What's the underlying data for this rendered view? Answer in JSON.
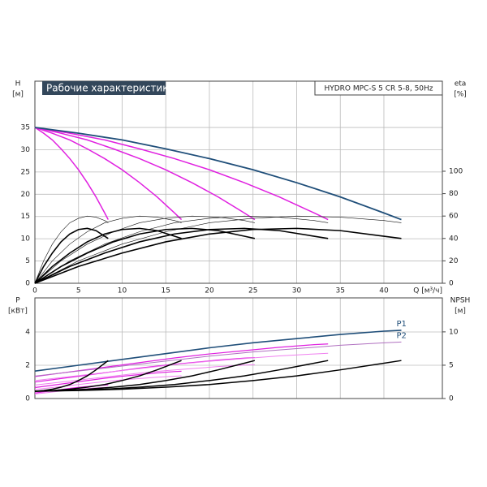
{
  "chart_data": [
    {
      "type": "line",
      "title": "Рабочие характеристики",
      "model": "HYDRO MPC-S 5 CR 5-8, 50Hz",
      "y_label": "H",
      "y_unit": "[м]",
      "y2_label": "eta",
      "y2_unit": "[%]",
      "x_label": "Q [м³/ч]",
      "xlim": [
        0,
        46.7
      ],
      "xticks": [
        0,
        5,
        10,
        15,
        20,
        25,
        30,
        35,
        40
      ],
      "xtick_labels": true,
      "ylim": [
        0,
        45.4
      ],
      "yticks": [
        0,
        5,
        10,
        15,
        20,
        25,
        30,
        35
      ],
      "y2lim": [
        0,
        180.4
      ],
      "y2ticks": [
        0,
        20,
        40,
        60,
        80,
        100
      ],
      "grid": true,
      "series": [
        {
          "color": "#e020e0",
          "linewidth": 1.5,
          "x": [
            0,
            1,
            2,
            3,
            4,
            5,
            6,
            7,
            8,
            8.4
          ],
          "values": [
            35,
            33.7,
            32.2,
            30.2,
            28,
            25.5,
            22.6,
            19.4,
            15.8,
            14.3
          ]
        },
        {
          "color": "#e020e0",
          "linewidth": 1.5,
          "x": [
            0,
            2,
            4,
            6,
            8,
            10,
            12,
            14,
            16,
            16.8
          ],
          "values": [
            35,
            33.7,
            32.2,
            30.2,
            28,
            25.5,
            22.6,
            19.4,
            15.8,
            14.3
          ]
        },
        {
          "color": "#e020e0",
          "linewidth": 1.5,
          "x": [
            0,
            3,
            6,
            9,
            12,
            15,
            18,
            21,
            24,
            25.2
          ],
          "values": [
            35,
            33.7,
            32.2,
            30.2,
            28,
            25.5,
            22.6,
            19.4,
            15.8,
            14.3
          ]
        },
        {
          "color": "#e020e0",
          "linewidth": 1.5,
          "x": [
            0,
            4,
            8,
            12,
            16,
            20,
            24,
            28,
            32,
            33.6
          ],
          "values": [
            35,
            33.7,
            32.2,
            30.2,
            28,
            25.5,
            22.6,
            19.4,
            15.8,
            14.3
          ]
        },
        {
          "color": "#1f4e79",
          "linewidth": 1.8,
          "x": [
            0,
            5,
            10,
            15,
            20,
            25,
            30,
            35,
            40,
            42
          ],
          "values": [
            35,
            33.7,
            32.2,
            30.2,
            28,
            25.5,
            22.6,
            19.4,
            15.8,
            14.3
          ]
        },
        {
          "color": "#111111",
          "linewidth": 0.6,
          "axis": "y2",
          "x": [
            0,
            1,
            2,
            3,
            4,
            5,
            6,
            7,
            8,
            8.4
          ],
          "values": [
            0,
            20,
            35,
            46,
            54,
            58,
            60,
            59,
            56,
            54
          ]
        },
        {
          "color": "#111111",
          "linewidth": 0.6,
          "axis": "y2",
          "x": [
            0,
            2,
            4,
            6,
            8,
            10,
            12,
            14,
            16,
            16.8
          ],
          "values": [
            0,
            20,
            35,
            46,
            54,
            58,
            60,
            59,
            56,
            54
          ]
        },
        {
          "color": "#111111",
          "linewidth": 0.6,
          "axis": "y2",
          "x": [
            0,
            3,
            6,
            9,
            12,
            15,
            18,
            21,
            24,
            25.2
          ],
          "values": [
            0,
            20,
            35,
            46,
            54,
            58,
            60,
            59,
            56,
            54
          ]
        },
        {
          "color": "#111111",
          "linewidth": 0.6,
          "axis": "y2",
          "x": [
            0,
            4,
            8,
            12,
            16,
            20,
            24,
            28,
            32,
            33.6
          ],
          "values": [
            0,
            20,
            35,
            46,
            54,
            58,
            60,
            59,
            56,
            54
          ]
        },
        {
          "color": "#111111",
          "linewidth": 0.6,
          "axis": "y2",
          "x": [
            0,
            5,
            10,
            15,
            20,
            25,
            30,
            35,
            40,
            42
          ],
          "values": [
            0,
            20,
            35,
            46,
            54,
            58,
            60,
            59,
            56,
            54
          ]
        },
        {
          "color": "#000000",
          "linewidth": 1.6,
          "axis": "y2",
          "x": [
            0,
            1,
            2,
            3,
            4,
            5,
            6,
            7,
            8,
            8.4
          ],
          "values": [
            0,
            15,
            27,
            37,
            44,
            48,
            49,
            47,
            42,
            40
          ]
        },
        {
          "color": "#000000",
          "linewidth": 1.6,
          "axis": "y2",
          "x": [
            0,
            2,
            4,
            6,
            8,
            10,
            12,
            14,
            16,
            16.8
          ],
          "values": [
            0,
            15,
            27,
            37,
            44,
            48,
            49,
            47,
            42,
            40
          ]
        },
        {
          "color": "#000000",
          "linewidth": 1.6,
          "axis": "y2",
          "x": [
            0,
            3,
            6,
            9,
            12,
            15,
            18,
            21,
            24,
            25.2
          ],
          "values": [
            0,
            15,
            27,
            37,
            44,
            48,
            49,
            47,
            42,
            40
          ]
        },
        {
          "color": "#000000",
          "linewidth": 1.6,
          "axis": "y2",
          "x": [
            0,
            4,
            8,
            12,
            16,
            20,
            24,
            28,
            32,
            33.6
          ],
          "values": [
            0,
            15,
            27,
            37,
            44,
            48,
            49,
            47,
            42,
            40
          ]
        },
        {
          "color": "#000000",
          "linewidth": 1.6,
          "axis": "y2",
          "x": [
            0,
            5,
            10,
            15,
            20,
            25,
            30,
            35,
            40,
            42
          ],
          "values": [
            0,
            15,
            27,
            37,
            44,
            48,
            49,
            47,
            42,
            40
          ]
        }
      ]
    },
    {
      "type": "line",
      "y_label": "P",
      "y_unit": "[кВт]",
      "y2_label": "NPSH",
      "y2_unit": "[м]",
      "xlim": [
        0,
        46.7
      ],
      "xticks": [
        0,
        5,
        10,
        15,
        20,
        25,
        30,
        35,
        40
      ],
      "xtick_labels": false,
      "ylim": [
        0,
        6.05
      ],
      "yticks": [
        0,
        2,
        4
      ],
      "y2lim": [
        0,
        15.1
      ],
      "y2ticks": [
        0,
        5,
        10
      ],
      "grid": true,
      "series": [
        {
          "color": "#e020e0",
          "linewidth": 1.2,
          "x": [
            0,
            1,
            2,
            3,
            4,
            5,
            6,
            7,
            8,
            8.4
          ],
          "values": [
            0.33,
            0.4,
            0.47,
            0.54,
            0.61,
            0.67,
            0.72,
            0.77,
            0.81,
            0.82
          ]
        },
        {
          "color": "#e020e0",
          "linewidth": 1.2,
          "x": [
            0,
            2,
            4,
            6,
            8,
            10,
            12,
            14,
            16,
            16.8
          ],
          "values": [
            0.66,
            0.8,
            0.94,
            1.08,
            1.22,
            1.34,
            1.44,
            1.54,
            1.62,
            1.64
          ]
        },
        {
          "color": "#e020e0",
          "linewidth": 1.2,
          "x": [
            0,
            3,
            6,
            9,
            12,
            15,
            18,
            21,
            24,
            25.2
          ],
          "values": [
            0.99,
            1.2,
            1.41,
            1.62,
            1.83,
            2.01,
            2.16,
            2.31,
            2.43,
            2.46
          ]
        },
        {
          "color": "#e020e0",
          "linewidth": 1.2,
          "x": [
            0,
            4,
            8,
            12,
            16,
            20,
            24,
            28,
            32,
            33.6
          ],
          "values": [
            1.32,
            1.6,
            1.88,
            2.16,
            2.44,
            2.68,
            2.88,
            3.08,
            3.24,
            3.28
          ]
        },
        {
          "name": "P1",
          "color": "#1f4e79",
          "linewidth": 1.6,
          "x": [
            0,
            5,
            10,
            15,
            20,
            25,
            30,
            35,
            40,
            42
          ],
          "values": [
            1.65,
            2,
            2.35,
            2.7,
            3.05,
            3.35,
            3.6,
            3.85,
            4.05,
            4.1
          ]
        },
        {
          "color": "#f080f0",
          "linewidth": 1,
          "x": [
            0,
            1,
            2,
            3,
            4,
            5,
            6,
            7,
            8,
            8.4
          ],
          "values": [
            0.27,
            0.33,
            0.39,
            0.45,
            0.51,
            0.56,
            0.6,
            0.64,
            0.67,
            0.68
          ]
        },
        {
          "color": "#f080f0",
          "linewidth": 1,
          "x": [
            0,
            2,
            4,
            6,
            8,
            10,
            12,
            14,
            16,
            16.8
          ],
          "values": [
            0.54,
            0.66,
            0.78,
            0.9,
            1.02,
            1.12,
            1.2,
            1.28,
            1.34,
            1.36
          ]
        },
        {
          "color": "#f080f0",
          "linewidth": 1,
          "x": [
            0,
            3,
            6,
            9,
            12,
            15,
            18,
            21,
            24,
            25.2
          ],
          "values": [
            0.81,
            0.99,
            1.17,
            1.35,
            1.53,
            1.68,
            1.8,
            1.92,
            2.01,
            2.04
          ]
        },
        {
          "color": "#f080f0",
          "linewidth": 1,
          "x": [
            0,
            4,
            8,
            12,
            16,
            20,
            24,
            28,
            32,
            33.6
          ],
          "values": [
            1.08,
            1.32,
            1.56,
            1.8,
            2.04,
            2.24,
            2.4,
            2.56,
            2.68,
            2.72
          ]
        },
        {
          "name": "P2",
          "color": "#b070c0",
          "linewidth": 1,
          "x": [
            0,
            5,
            10,
            15,
            20,
            25,
            30,
            35,
            40,
            42
          ],
          "values": [
            1.35,
            1.65,
            1.95,
            2.25,
            2.55,
            2.8,
            3,
            3.2,
            3.35,
            3.4
          ]
        },
        {
          "color": "#000000",
          "linewidth": 1.5,
          "axis": "y2",
          "x": [
            0,
            1,
            2,
            3,
            4,
            5,
            6,
            7,
            8,
            8.4
          ],
          "values": [
            1.1,
            1.2,
            1.4,
            1.7,
            2.1,
            2.7,
            3.4,
            4.3,
            5.3,
            5.7
          ]
        },
        {
          "color": "#000000",
          "linewidth": 1.5,
          "axis": "y2",
          "x": [
            0,
            2,
            4,
            6,
            8,
            10,
            12,
            14,
            16,
            16.8
          ],
          "values": [
            1.1,
            1.2,
            1.4,
            1.7,
            2.1,
            2.7,
            3.4,
            4.3,
            5.3,
            5.7
          ]
        },
        {
          "color": "#000000",
          "linewidth": 1.5,
          "axis": "y2",
          "x": [
            0,
            3,
            6,
            9,
            12,
            15,
            18,
            21,
            24,
            25.2
          ],
          "values": [
            1.1,
            1.2,
            1.4,
            1.7,
            2.1,
            2.7,
            3.4,
            4.3,
            5.3,
            5.7
          ]
        },
        {
          "color": "#000000",
          "linewidth": 1.5,
          "axis": "y2",
          "x": [
            0,
            4,
            8,
            12,
            16,
            20,
            24,
            28,
            32,
            33.6
          ],
          "values": [
            1.1,
            1.2,
            1.4,
            1.7,
            2.1,
            2.7,
            3.4,
            4.3,
            5.3,
            5.7
          ]
        },
        {
          "color": "#000000",
          "linewidth": 1.5,
          "axis": "y2",
          "x": [
            0,
            5,
            10,
            15,
            20,
            25,
            30,
            35,
            40,
            42
          ],
          "values": [
            1.1,
            1.2,
            1.4,
            1.7,
            2.1,
            2.7,
            3.4,
            4.3,
            5.3,
            5.7
          ]
        }
      ]
    }
  ]
}
